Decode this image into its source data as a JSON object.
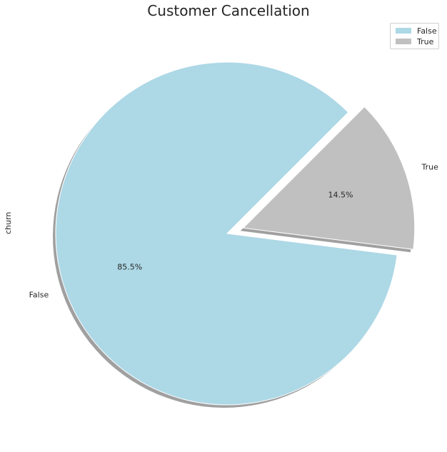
{
  "chart_data": {
    "type": "pie",
    "title": "Customer Cancellation",
    "ylabel": "churn",
    "categories": [
      "False",
      "True"
    ],
    "values": [
      85.5,
      14.5
    ],
    "autopct_labels": [
      "85.5%",
      "14.5%"
    ],
    "colors": [
      "#add8e6",
      "#c0c0c0"
    ],
    "explode": [
      0,
      0.1
    ],
    "shadow": true,
    "start_angle_deg": 45,
    "legend": {
      "placement": "top-right",
      "entries": [
        "False",
        "True"
      ]
    }
  }
}
